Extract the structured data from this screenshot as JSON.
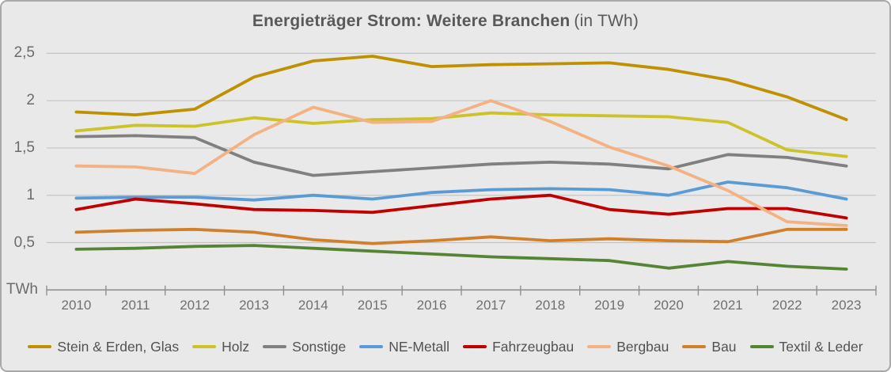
{
  "window": {
    "background": "#e9e9e9",
    "border_color": "#a9a9a9"
  },
  "title": {
    "main": "Energieträger Strom: Weitere Branchen",
    "suffix": "(in TWh)"
  },
  "chart_data": {
    "type": "line",
    "title": "Energieträger Strom: Weitere Branchen (in TWh)",
    "axis_unit_label": "TWh",
    "ylim": [
      0,
      2.5
    ],
    "grid": true,
    "legend_position": "bottom",
    "y_ticks": [
      {
        "label": "2,5",
        "value": 2.5
      },
      {
        "label": "2",
        "value": 2.0
      },
      {
        "label": "1,5",
        "value": 1.5
      },
      {
        "label": "1",
        "value": 1.0
      },
      {
        "label": "0,5",
        "value": 0.5
      }
    ],
    "categories": [
      "2010",
      "2011",
      "2012",
      "2013",
      "2014",
      "2015",
      "2016",
      "2017",
      "2018",
      "2019",
      "2020",
      "2021",
      "2022",
      "2023"
    ],
    "series": [
      {
        "name": "Stein & Erden, Glas",
        "color": "#BF9000",
        "values": [
          1.88,
          1.85,
          1.91,
          2.25,
          2.42,
          2.47,
          2.36,
          2.38,
          2.39,
          2.4,
          2.33,
          2.22,
          2.04,
          1.8
        ]
      },
      {
        "name": "Holz",
        "color": "#CCC32A",
        "values": [
          1.68,
          1.74,
          1.73,
          1.82,
          1.76,
          1.8,
          1.81,
          1.87,
          1.85,
          1.84,
          1.83,
          1.77,
          1.48,
          1.41
        ]
      },
      {
        "name": "Sonstige",
        "color": "#808080",
        "values": [
          1.62,
          1.63,
          1.61,
          1.35,
          1.21,
          1.25,
          1.29,
          1.33,
          1.35,
          1.33,
          1.28,
          1.43,
          1.4,
          1.31
        ]
      },
      {
        "name": "NE-Metall",
        "color": "#5B9BD5",
        "values": [
          0.97,
          0.98,
          0.98,
          0.95,
          1.0,
          0.96,
          1.03,
          1.06,
          1.07,
          1.06,
          1.0,
          1.14,
          1.08,
          0.96
        ]
      },
      {
        "name": "Fahrzeugbau",
        "color": "#C00000",
        "values": [
          0.85,
          0.96,
          0.91,
          0.85,
          0.84,
          0.82,
          0.89,
          0.96,
          1.0,
          0.85,
          0.8,
          0.86,
          0.86,
          0.76
        ]
      },
      {
        "name": "Bergbau",
        "color": "#F4B183",
        "values": [
          1.31,
          1.3,
          1.23,
          1.64,
          1.93,
          1.77,
          1.78,
          2.0,
          1.78,
          1.51,
          1.31,
          1.05,
          0.72,
          0.68
        ]
      },
      {
        "name": "Bau",
        "color": "#D0802B",
        "values": [
          0.61,
          0.63,
          0.64,
          0.61,
          0.53,
          0.49,
          0.52,
          0.56,
          0.52,
          0.54,
          0.52,
          0.51,
          0.64,
          0.64
        ]
      },
      {
        "name": "Textil & Leder",
        "color": "#568435",
        "values": [
          0.43,
          0.44,
          0.46,
          0.47,
          0.44,
          0.41,
          0.38,
          0.35,
          0.33,
          0.31,
          0.23,
          0.3,
          0.25,
          0.22
        ]
      }
    ]
  }
}
